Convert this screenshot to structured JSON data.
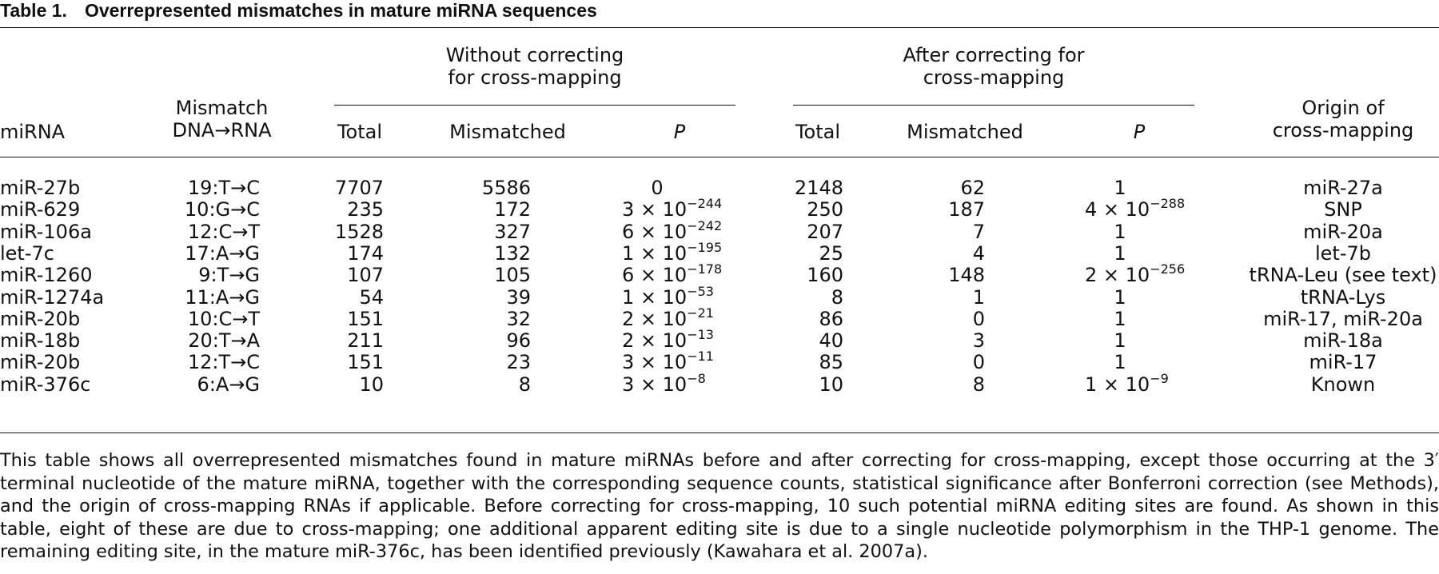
{
  "title": {
    "label": "Table 1.",
    "text": "Overrepresented mismatches in mature miRNA sequences"
  },
  "header": {
    "mirna": "miRNA",
    "mismatch_line1": "Mismatch",
    "mismatch_line2": "DNA→RNA",
    "group_without_line1": "Without correcting",
    "group_without_line2": "for cross-mapping",
    "group_after_line1": "After correcting for",
    "group_after_line2": "cross-mapping",
    "total": "Total",
    "mismatched": "Mismatched",
    "p": "P",
    "origin_line1": "Origin of",
    "origin_line2": "cross-mapping"
  },
  "rows": [
    {
      "mirna": "miR-27b",
      "mismatch": "19:T→C",
      "w_total": "7707",
      "w_mismatched": "5586",
      "w_p_base": "0",
      "w_p_exp": "",
      "a_total": "2148",
      "a_mismatched": "62",
      "a_p_base": "1",
      "a_p_exp": "",
      "origin": "miR-27a"
    },
    {
      "mirna": "miR-629",
      "mismatch": "10:G→C",
      "w_total": "235",
      "w_mismatched": "172",
      "w_p_base": "3 × 10",
      "w_p_exp": "−244",
      "a_total": "250",
      "a_mismatched": "187",
      "a_p_base": "4 × 10",
      "a_p_exp": "−288",
      "origin": "SNP"
    },
    {
      "mirna": "miR-106a",
      "mismatch": "12:C→T",
      "w_total": "1528",
      "w_mismatched": "327",
      "w_p_base": "6 × 10",
      "w_p_exp": "−242",
      "a_total": "207",
      "a_mismatched": "7",
      "a_p_base": "1",
      "a_p_exp": "",
      "origin": "miR-20a"
    },
    {
      "mirna": "let-7c",
      "mismatch": "17:A→G",
      "w_total": "174",
      "w_mismatched": "132",
      "w_p_base": "1 × 10",
      "w_p_exp": "−195",
      "a_total": "25",
      "a_mismatched": "4",
      "a_p_base": "1",
      "a_p_exp": "",
      "origin": "let-7b"
    },
    {
      "mirna": "miR-1260",
      "mismatch": "9:T→G",
      "w_total": "107",
      "w_mismatched": "105",
      "w_p_base": "6 × 10",
      "w_p_exp": "−178",
      "a_total": "160",
      "a_mismatched": "148",
      "a_p_base": "2 × 10",
      "a_p_exp": "−256",
      "origin": "tRNA-Leu (see text)"
    },
    {
      "mirna": "miR-1274a",
      "mismatch": "11:A→G",
      "w_total": "54",
      "w_mismatched": "39",
      "w_p_base": "1 × 10",
      "w_p_exp": "−53",
      "a_total": "8",
      "a_mismatched": "1",
      "a_p_base": "1",
      "a_p_exp": "",
      "origin": "tRNA-Lys"
    },
    {
      "mirna": "miR-20b",
      "mismatch": "10:C→T",
      "w_total": "151",
      "w_mismatched": "32",
      "w_p_base": "2 × 10",
      "w_p_exp": "−21",
      "a_total": "86",
      "a_mismatched": "0",
      "a_p_base": "1",
      "a_p_exp": "",
      "origin": "miR-17, miR-20a"
    },
    {
      "mirna": "miR-18b",
      "mismatch": "20:T→A",
      "w_total": "211",
      "w_mismatched": "96",
      "w_p_base": "2 × 10",
      "w_p_exp": "−13",
      "a_total": "40",
      "a_mismatched": "3",
      "a_p_base": "1",
      "a_p_exp": "",
      "origin": "miR-18a"
    },
    {
      "mirna": "miR-20b",
      "mismatch": "12:T→C",
      "w_total": "151",
      "w_mismatched": "23",
      "w_p_base": "3 × 10",
      "w_p_exp": "−11",
      "a_total": "85",
      "a_mismatched": "0",
      "a_p_base": "1",
      "a_p_exp": "",
      "origin": "miR-17"
    },
    {
      "mirna": "miR-376c",
      "mismatch": "6:A→G",
      "w_total": "10",
      "w_mismatched": "8",
      "w_p_base": "3 × 10",
      "w_p_exp": "−8",
      "a_total": "10",
      "a_mismatched": "8",
      "a_p_base": "1 × 10",
      "a_p_exp": "−9",
      "origin": "Known"
    }
  ],
  "footnote": "This table shows all overrepresented mismatches found in mature miRNAs before and after correcting for cross-mapping, except those occurring at the 3′ terminal nucleotide of the mature miRNA, together with the corresponding sequence counts, statistical significance after Bonferroni correction (see Methods), and the origin of cross-mapping RNAs if applicable. Before correcting for cross-mapping, 10 such potential miRNA editing sites are found. As shown in this table, eight of these are due to cross-mapping; one additional apparent editing site is due to a single nucleotide polymorphism in the THP-1 genome. The remaining editing site, in the mature miR-376c, has been identified previously (Kawahara et al. 2007a)."
}
